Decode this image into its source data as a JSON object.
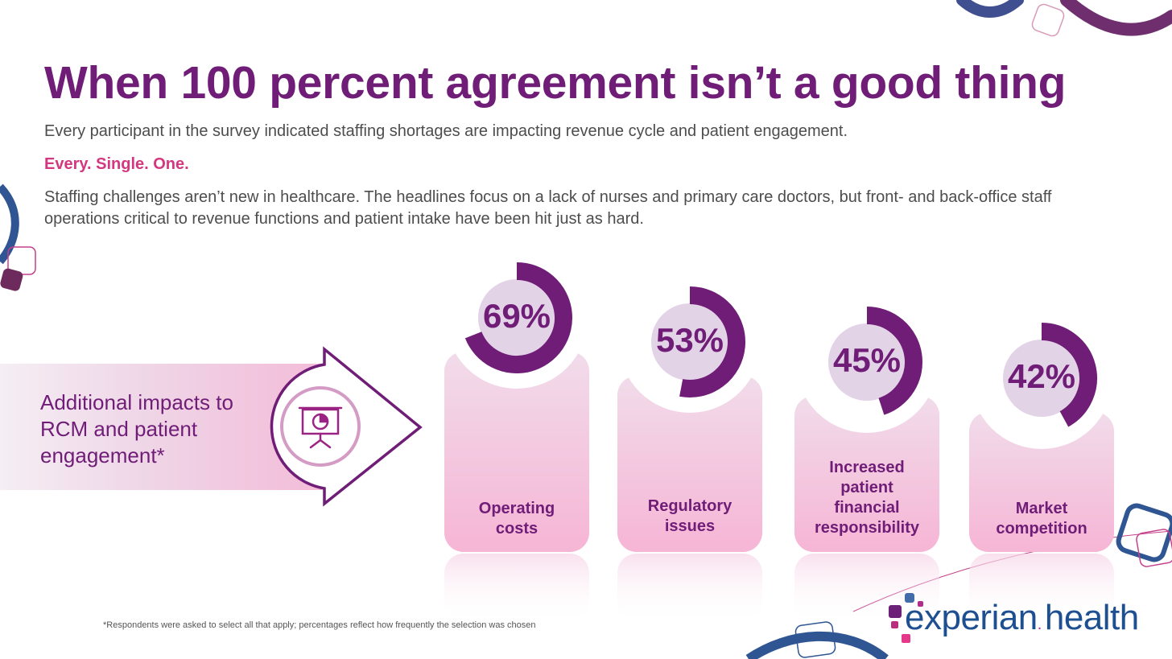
{
  "title": "When 100 percent agreement isn’t a good thing",
  "intro": "Every participant in the survey indicated staffing shortages are impacting revenue cycle and patient engagement.",
  "emphasis": "Every. Single. One.",
  "body": "Staffing challenges aren’t new in healthcare. The headlines focus on a lack of nurses and primary care doctors, but front- and back-office staff operations critical to revenue functions and patient intake have been hit just as hard.",
  "callout": {
    "label": "Additional impacts to RCM and patient engagement*",
    "icon": "presentation-pie-chart-icon"
  },
  "chart_data": {
    "type": "bar",
    "categories": [
      "Operating costs",
      "Regulatory issues",
      "Increased patient financial responsibility",
      "Market competition"
    ],
    "values": [
      69,
      53,
      45,
      42
    ],
    "value_labels": [
      "69%",
      "53%",
      "45%",
      "42%"
    ],
    "unit": "%",
    "ylim": [
      0,
      100
    ]
  },
  "footnote": "*Respondents were asked to select all that apply; percentages reflect how frequently the selection was chosen",
  "brand": {
    "name_primary": "experian",
    "name_secondary": "health",
    "colors": {
      "primary": "#6f1d77",
      "accent": "#d4377f",
      "ring_track": "#e3d3e7",
      "card_top": "#f1dcea",
      "card_bottom": "#f6b5d5",
      "blue": "#1d4f91"
    }
  }
}
